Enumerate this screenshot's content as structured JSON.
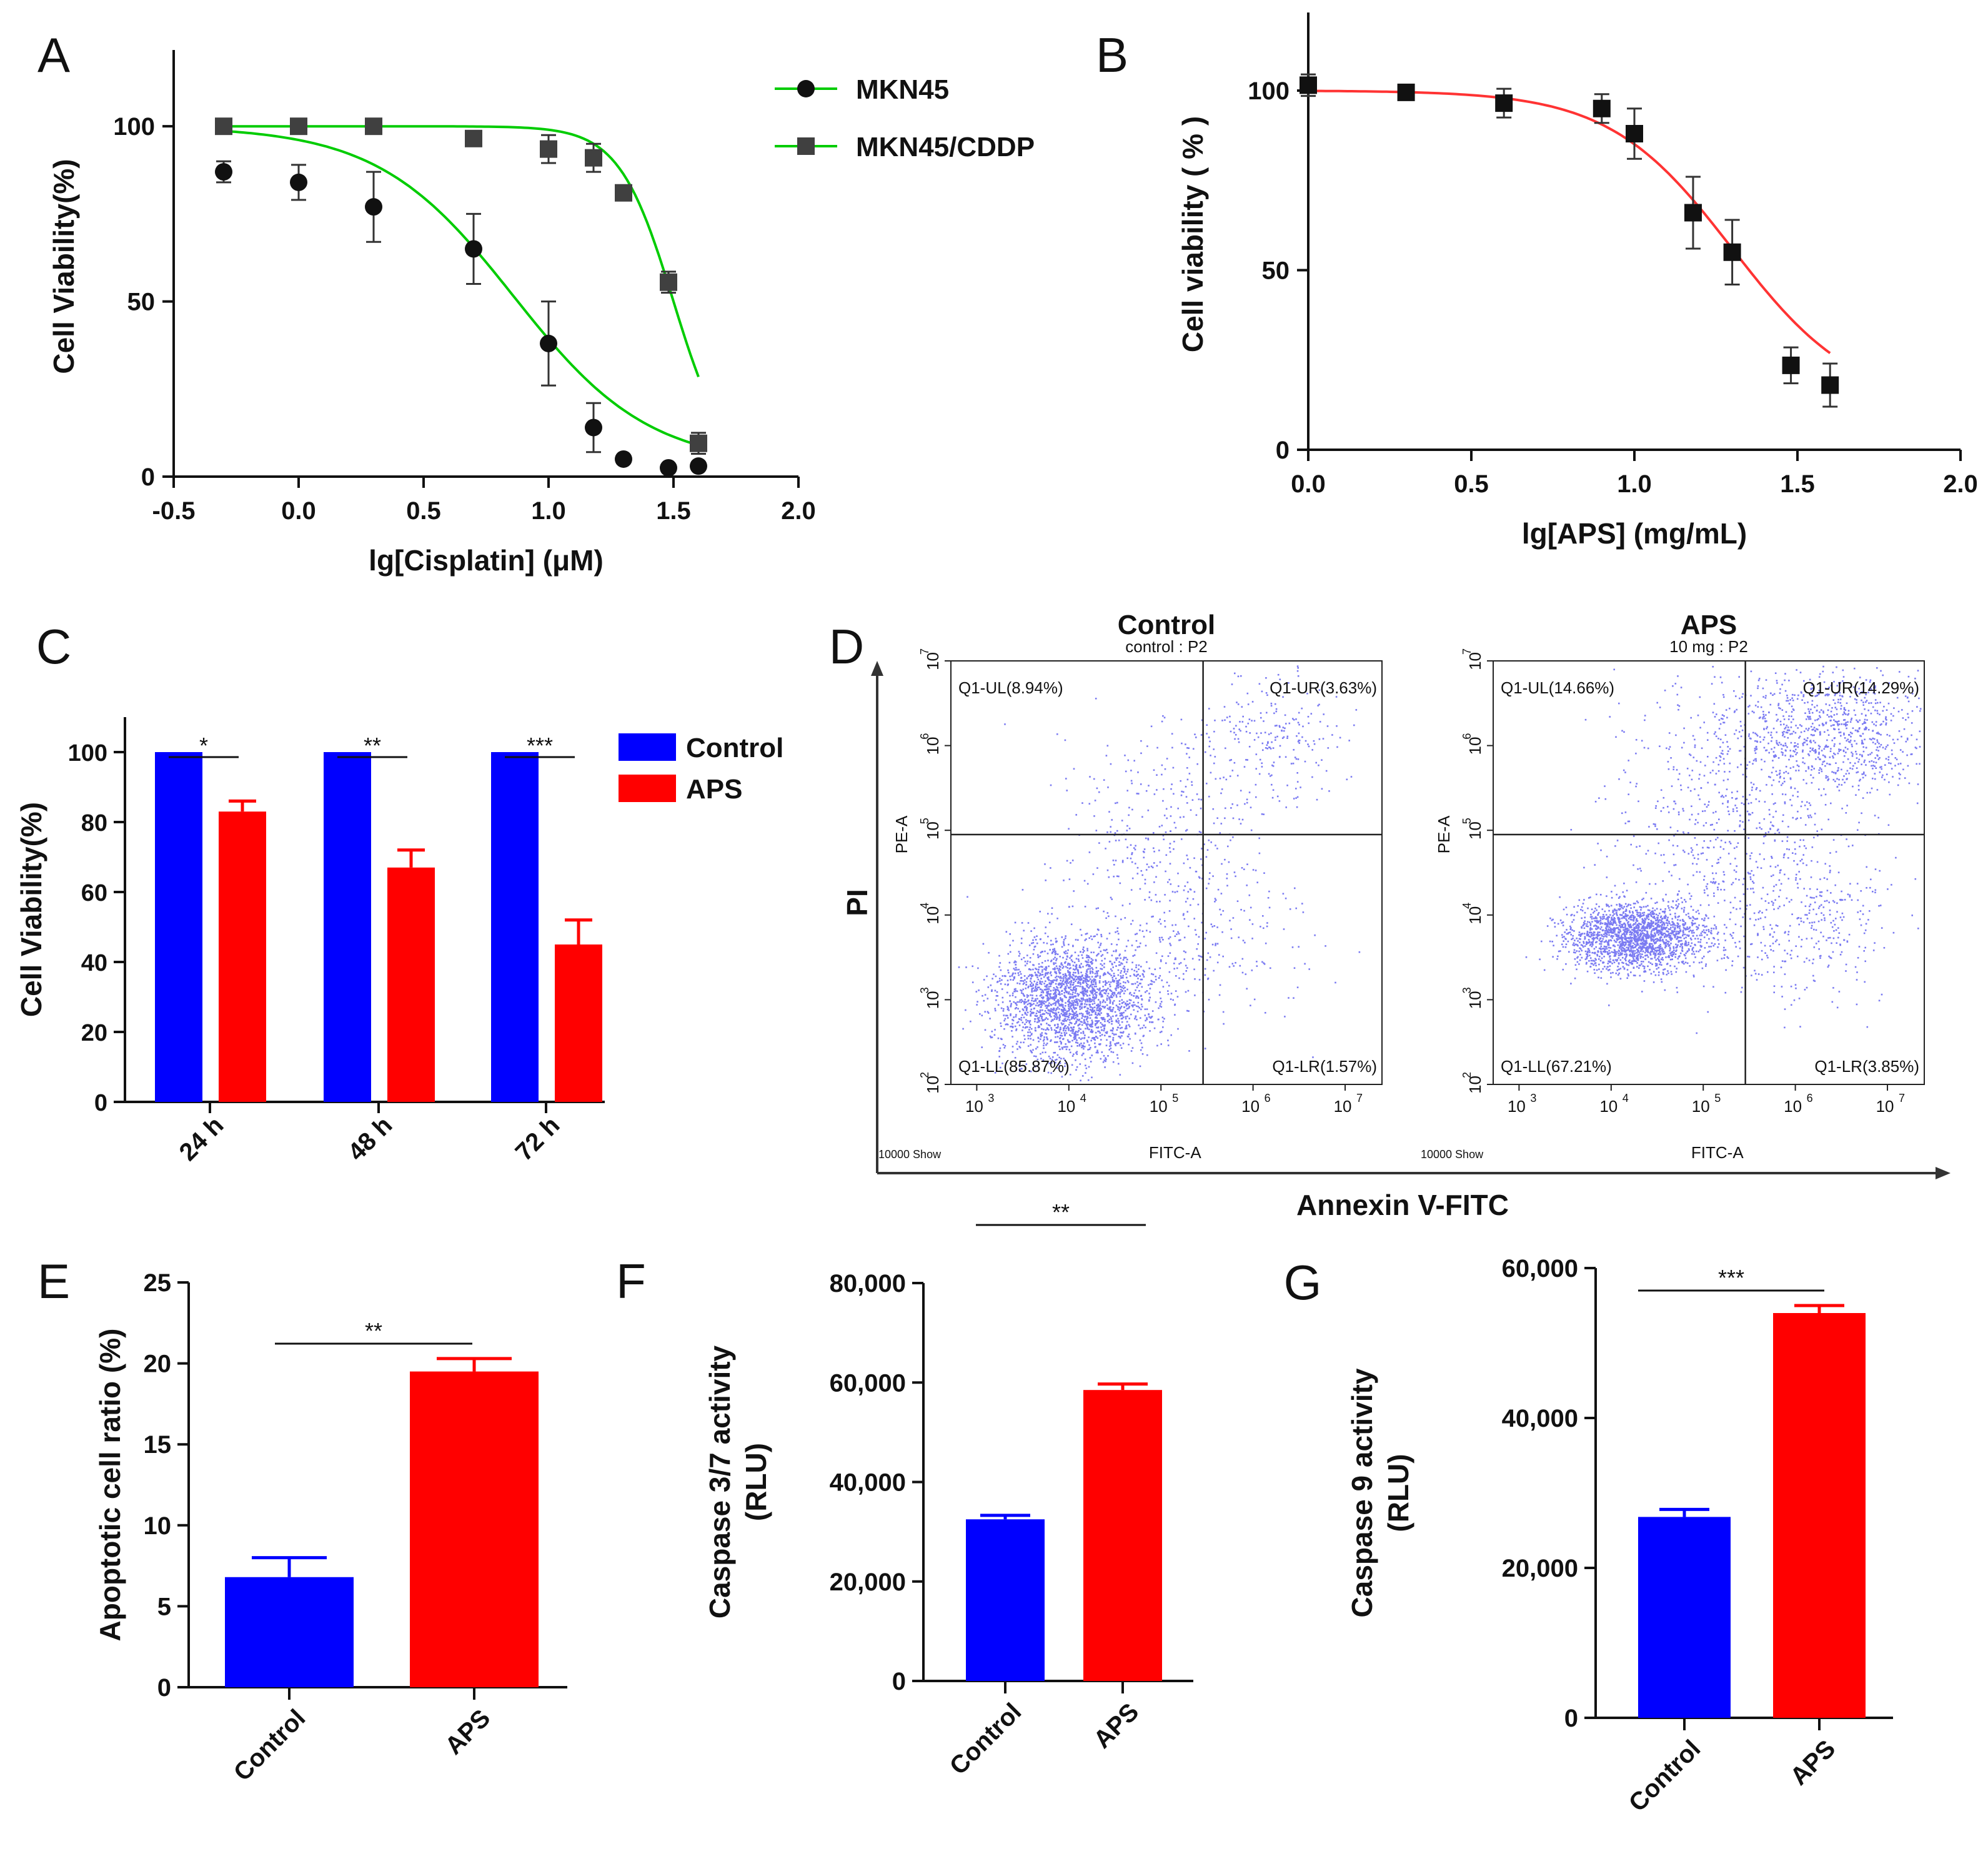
{
  "colors": {
    "control": "#0000ff",
    "aps": "#ff0000",
    "curve_green": "#00cc00",
    "curve_red": "#ff3333",
    "marker_dark": "#111111",
    "marker_grey": "#404040",
    "dots": "#7b7bf2"
  },
  "chart_data": [
    {
      "panel": "A",
      "type": "scatter",
      "xlabel": "lg[Cisplatin] (μM)",
      "ylabel": "Cell Viability(%)",
      "xlim": [
        -0.5,
        2.0
      ],
      "ylim": [
        0,
        120
      ],
      "xticks": [
        "-0.5",
        "0.0",
        "0.5",
        "1.0",
        "1.5",
        "2.0"
      ],
      "yticks": [
        "0",
        "50",
        "100"
      ],
      "legend_position": "top-right",
      "series": [
        {
          "name": "MKN45",
          "marker": "circle",
          "x": [
            -0.3,
            0.0,
            0.3,
            0.7,
            1.0,
            1.18,
            1.3,
            1.48,
            1.6
          ],
          "y": [
            87,
            84,
            77,
            65,
            38,
            14,
            5,
            2.5,
            3
          ],
          "err": [
            3,
            5,
            10,
            10,
            12,
            7,
            1,
            1,
            1
          ],
          "fit": {
            "top": 100,
            "bottom": 3,
            "logIC50": 0.86,
            "hill": 1.6
          }
        },
        {
          "name": "MKN45/CDDP",
          "marker": "square",
          "x": [
            -0.3,
            0.0,
            0.3,
            0.7,
            1.0,
            1.18,
            1.3,
            1.48,
            1.6
          ],
          "y": [
            100,
            100,
            100,
            96.5,
            93.5,
            91,
            81,
            55.5,
            9.5
          ],
          "err": [
            1,
            1,
            1,
            2,
            4,
            4,
            2,
            3,
            3
          ],
          "fit": {
            "top": 100,
            "bottom": 0,
            "logIC50": 1.5,
            "hill": 4.0
          }
        }
      ]
    },
    {
      "panel": "B",
      "type": "scatter",
      "xlabel": "lg[APS] (mg/mL)",
      "ylabel": "Cell viability ( % )",
      "xlim": [
        0.0,
        2.0
      ],
      "ylim": [
        0,
        120
      ],
      "xticks": [
        "0.0",
        "0.5",
        "1.0",
        "1.5",
        "2.0"
      ],
      "yticks": [
        "0",
        "50",
        "100"
      ],
      "series": [
        {
          "name": "APS",
          "marker": "square",
          "x": [
            0.0,
            0.3,
            0.6,
            0.9,
            1.0,
            1.18,
            1.3,
            1.48,
            1.6
          ],
          "y": [
            101.5,
            99.5,
            96.5,
            95,
            88,
            66,
            55,
            23.5,
            18
          ],
          "err": [
            3,
            1,
            4,
            4,
            7,
            10,
            9,
            5,
            6
          ],
          "fit": {
            "top": 100,
            "bottom": 12,
            "logIC50": 1.3,
            "hill": 2.3
          }
        }
      ]
    },
    {
      "panel": "C",
      "type": "bar",
      "ylabel": "Cell Viability(%)",
      "ylim": [
        0,
        110
      ],
      "yticks": [
        "0",
        "20",
        "40",
        "60",
        "80",
        "100"
      ],
      "categories": [
        "24 h",
        "48 h",
        "72 h"
      ],
      "legend_position": "top-right",
      "series": [
        {
          "name": "Control",
          "values": [
            100,
            100,
            100
          ],
          "err": [
            0,
            0,
            0
          ]
        },
        {
          "name": "APS",
          "values": [
            83,
            67,
            45
          ],
          "err": [
            3,
            5,
            7
          ]
        }
      ],
      "significance": [
        "*",
        "**",
        "***"
      ]
    },
    {
      "panel": "E",
      "type": "bar",
      "ylabel": "Apoptotic cell ratio (%)",
      "ylim": [
        0,
        25
      ],
      "yticks": [
        "0",
        "5",
        "10",
        "15",
        "20",
        "25"
      ],
      "categories": [
        "Control",
        "APS"
      ],
      "values": [
        6.8,
        19.5
      ],
      "err": [
        1.2,
        0.8
      ],
      "significance": "**"
    },
    {
      "panel": "F",
      "type": "bar",
      "ylabel": "Caspase 3/7 activity",
      "ylabel2": "(RLU)",
      "ylim": [
        0,
        80000
      ],
      "yticks": [
        "0",
        "20,000",
        "40,000",
        "60,000",
        "80,000"
      ],
      "categories": [
        "Control",
        "APS"
      ],
      "values": [
        32500,
        58500
      ],
      "err": [
        800,
        1200
      ],
      "significance": "**"
    },
    {
      "panel": "G",
      "type": "bar",
      "ylabel": "Caspase 9 activity",
      "ylabel2": "(RLU)",
      "ylim": [
        0,
        60000
      ],
      "yticks": [
        "0",
        "20,000",
        "40,000",
        "60,000"
      ],
      "categories": [
        "Control",
        "APS"
      ],
      "values": [
        26800,
        54000
      ],
      "err": [
        1000,
        1000
      ],
      "significance": "***"
    }
  ],
  "flow": {
    "panel": "D",
    "x_axis_label": "Annexin V-FITC",
    "y_axis_label": "PI",
    "pe_label": "PE-A",
    "fitc_label": "FITC-A",
    "event_label": "10000  Show",
    "tick_bases": [
      "10",
      "10",
      "10",
      "10",
      "10",
      "10"
    ],
    "tick_exps": [
      "2",
      "3",
      "4",
      "5",
      "6",
      "7"
    ],
    "x_tick_exps": [
      "3",
      "4",
      "5",
      "6",
      "7"
    ],
    "plots": [
      {
        "title": "Control",
        "subtitle": "control : P2",
        "ul": "Q1-UL(8.94%)",
        "ur": "Q1-UR(3.63%)",
        "ll": "Q1-LL(85.87%)",
        "lr": "Q1-LR(1.57%)"
      },
      {
        "title": "APS",
        "subtitle": "10 mg : P2",
        "ul": "Q1-UL(14.66%)",
        "ur": "Q1-UR(14.29%)",
        "ll": "Q1-LL(67.21%)",
        "lr": "Q1-LR(3.85%)"
      }
    ]
  },
  "panel_letters": [
    "A",
    "B",
    "C",
    "D",
    "E",
    "F",
    "G"
  ]
}
